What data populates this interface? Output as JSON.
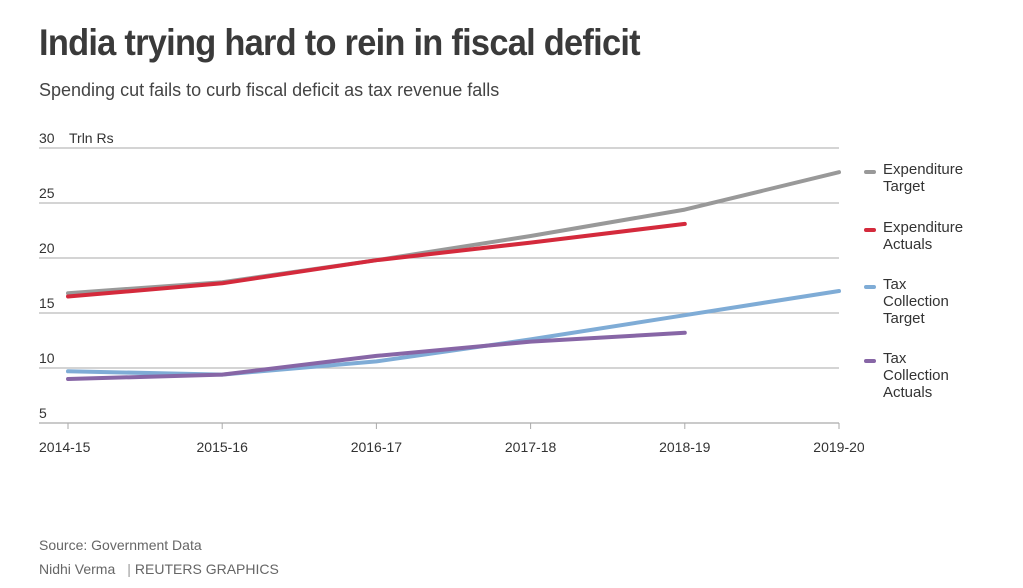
{
  "header": {
    "title": "India trying hard to rein in fiscal deficit",
    "subtitle": "Spending cut fails to curb fiscal deficit as tax revenue falls"
  },
  "footer": {
    "source": "Source: Government Data",
    "author": "Nidhi Verma",
    "credit": "REUTERS GRAPHICS"
  },
  "chart_data": {
    "type": "line",
    "title": "India trying hard to rein in fiscal deficit",
    "subtitle": "Spending cut fails to curb fiscal deficit as tax revenue falls",
    "xlabel": "",
    "ylabel": "Trln Rs",
    "categories": [
      "2014-15",
      "2015-16",
      "2016-17",
      "2017-18",
      "2018-19",
      "2019-20"
    ],
    "ylim": [
      5,
      30
    ],
    "yticks": [
      5,
      10,
      15,
      20,
      25,
      30
    ],
    "ytick_labels": [
      "5",
      "10",
      "15",
      "20",
      "25",
      "30"
    ],
    "grid": true,
    "legend_position": "right",
    "series": [
      {
        "name": "Expenditure Target",
        "color": "#999999",
        "values": [
          16.8,
          17.8,
          19.8,
          22.0,
          24.4,
          27.8
        ]
      },
      {
        "name": "Expenditure Actuals",
        "color": "#d42a3c",
        "values": [
          16.5,
          17.7,
          19.8,
          21.4,
          23.1,
          null
        ]
      },
      {
        "name": "Tax Collection Target",
        "color": "#7facd6",
        "values": [
          9.7,
          9.4,
          10.6,
          12.6,
          14.8,
          17.0
        ]
      },
      {
        "name": "Tax Collection Actuals",
        "color": "#8766a6",
        "values": [
          9.0,
          9.4,
          11.1,
          12.4,
          13.2,
          null
        ]
      }
    ]
  },
  "legend": [
    {
      "label": "Expenditure Target",
      "color": "#999999"
    },
    {
      "label": "Expenditure Actuals",
      "color": "#d42a3c"
    },
    {
      "label": "Tax Collection Target",
      "color": "#7facd6"
    },
    {
      "label": "Tax Collection Actuals",
      "color": "#8766a6"
    }
  ]
}
